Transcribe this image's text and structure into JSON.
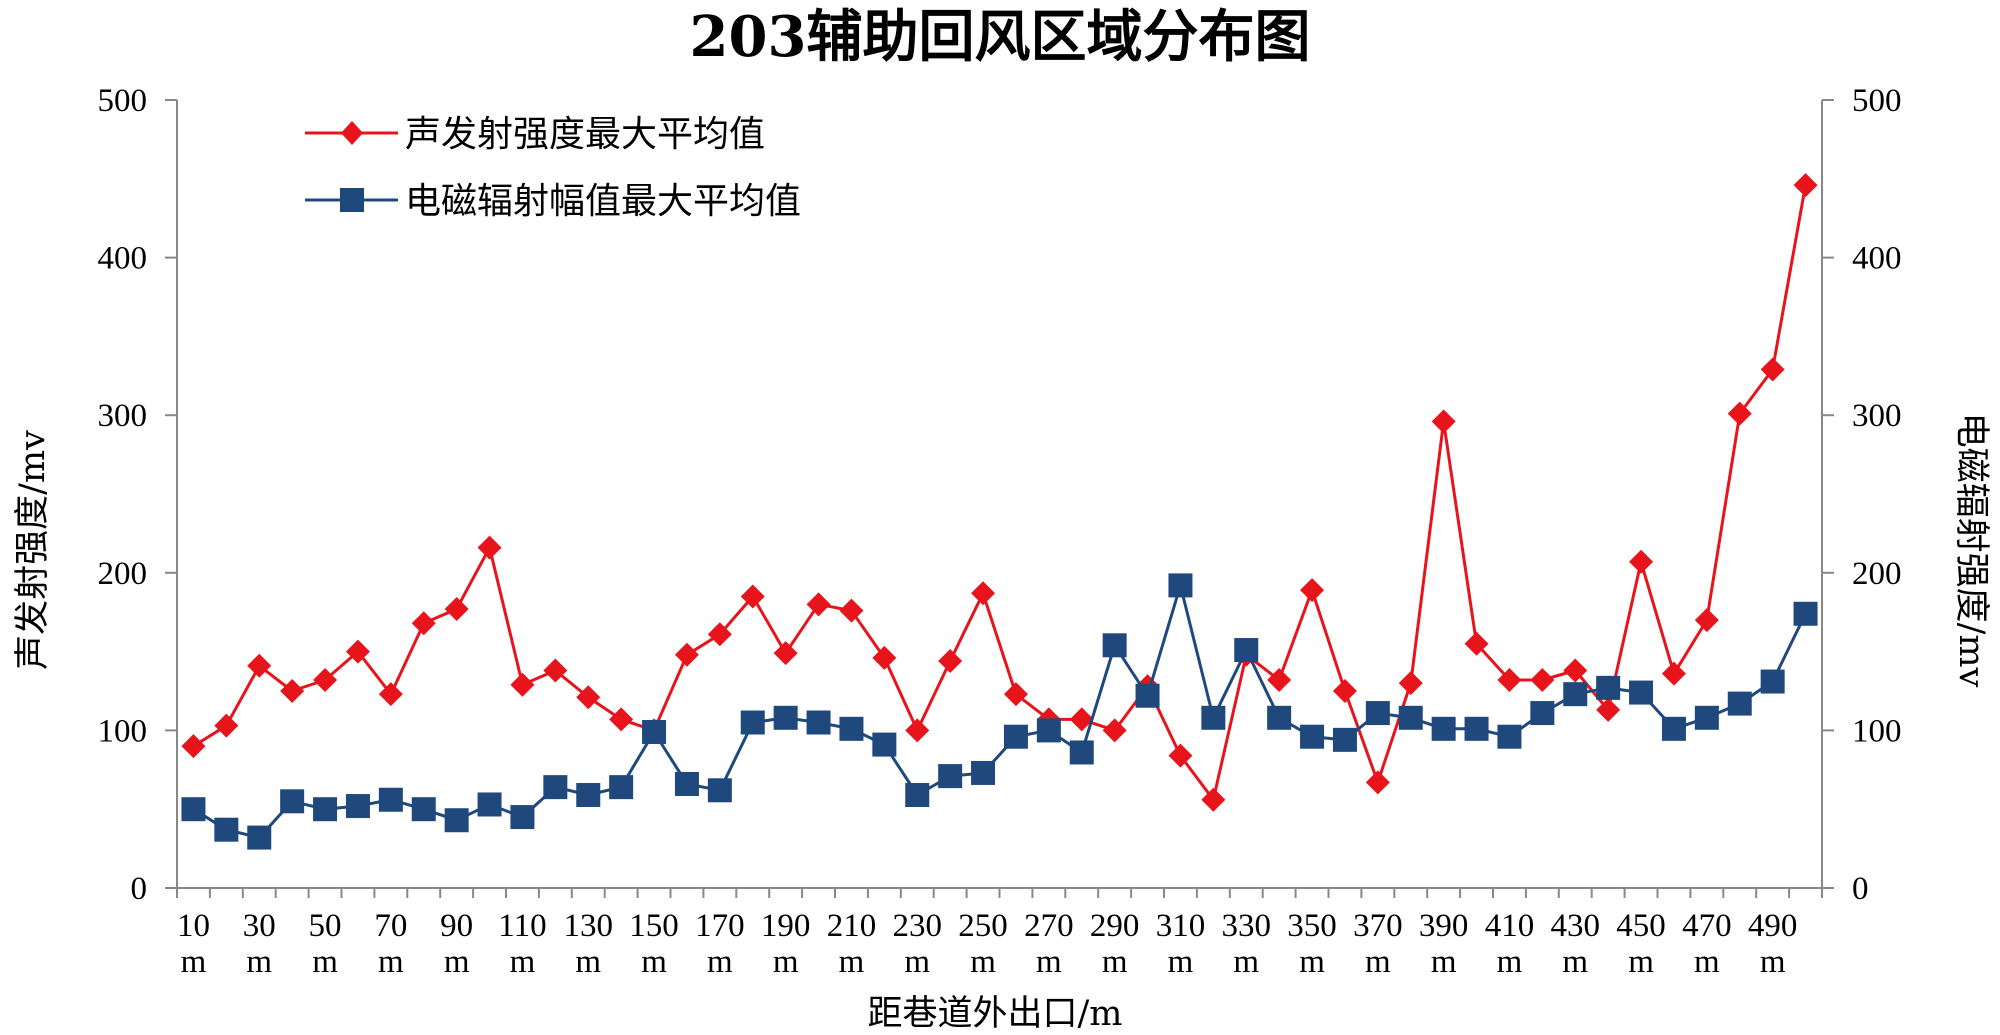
{
  "chart_data": {
    "type": "line",
    "title": "203辅助回风区域分布图",
    "xlabel": "距巷道外出口/m",
    "ylabel_left": "声发射强度/mv",
    "ylabel_right": "电磁辐射强度/mv",
    "ylim_left": [
      0,
      500
    ],
    "ylim_right": [
      0,
      500
    ],
    "yticks": [
      "0",
      "100",
      "200",
      "300",
      "400",
      "500"
    ],
    "grid": false,
    "legend_position": "top-left",
    "x_tick_labels": [
      "10",
      "30",
      "50",
      "70",
      "90",
      "110",
      "130",
      "150",
      "170",
      "190",
      "210",
      "230",
      "250",
      "270",
      "290",
      "310",
      "330",
      "350",
      "370",
      "390",
      "410",
      "430",
      "450",
      "470",
      "490"
    ],
    "x_tick_unit": "m",
    "x": [
      10,
      20,
      30,
      40,
      50,
      60,
      70,
      80,
      90,
      100,
      110,
      120,
      130,
      140,
      150,
      160,
      170,
      180,
      190,
      200,
      210,
      220,
      230,
      240,
      250,
      260,
      270,
      280,
      290,
      300,
      310,
      320,
      330,
      340,
      350,
      360,
      370,
      380,
      390,
      400,
      410,
      420,
      430,
      440,
      450,
      460,
      470,
      480,
      490,
      500
    ],
    "series": [
      {
        "name": "声发射强度最大平均值",
        "axis": "left",
        "color": "#e8141c",
        "marker": "diamond",
        "values": [
          90,
          103,
          141,
          125,
          132,
          150,
          123,
          168,
          177,
          216,
          129,
          138,
          121,
          107,
          100,
          148,
          161,
          185,
          149,
          180,
          176,
          146,
          100,
          144,
          187,
          123,
          107,
          107,
          100,
          128,
          84,
          56,
          148,
          132,
          189,
          125,
          67,
          130,
          296,
          155,
          132,
          132,
          138,
          113,
          207,
          136,
          170,
          301,
          329,
          446
        ]
      },
      {
        "name": "电磁辐射幅值最大平均值",
        "axis": "right",
        "color": "#1f497d",
        "marker": "square",
        "values": [
          50,
          37,
          32,
          55,
          50,
          52,
          56,
          50,
          43,
          53,
          45,
          64,
          59,
          64,
          99,
          66,
          62,
          105,
          108,
          105,
          101,
          91,
          59,
          71,
          73,
          96,
          100,
          86,
          154,
          122,
          192,
          108,
          151,
          108,
          96,
          94,
          111,
          108,
          101,
          101,
          96,
          111,
          123,
          127,
          124,
          101,
          108,
          117,
          131,
          174
        ]
      }
    ]
  }
}
